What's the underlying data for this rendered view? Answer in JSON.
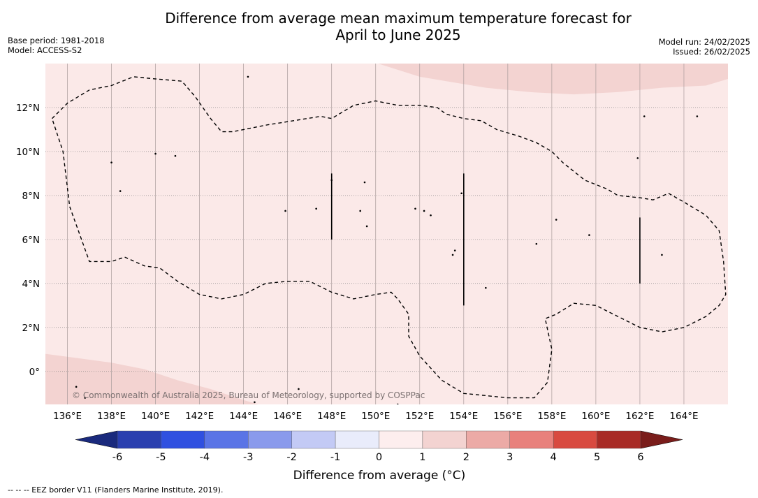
{
  "header": {
    "title_line1": "Difference from average mean maximum temperature forecast for",
    "title_line2": "April to June 2025",
    "base_period": "Base period: 1981-2018",
    "model": "Model: ACCESS-S2",
    "model_run": "Model run: 24/02/2025",
    "issued": "Issued: 26/02/2025"
  },
  "map": {
    "lon_range": [
      135,
      166
    ],
    "lat_range": [
      -1.5,
      14
    ],
    "lon_ticks": [
      "136°E",
      "138°E",
      "140°E",
      "142°E",
      "144°E",
      "146°E",
      "148°E",
      "150°E",
      "152°E",
      "154°E",
      "156°E",
      "158°E",
      "160°E",
      "162°E",
      "164°E"
    ],
    "lon_tick_values": [
      136,
      138,
      140,
      142,
      144,
      146,
      148,
      150,
      152,
      154,
      156,
      158,
      160,
      162,
      164
    ],
    "lat_ticks": [
      "0°",
      "2°N",
      "4°N",
      "6°N",
      "8°N",
      "10°N",
      "12°N"
    ],
    "lat_tick_values": [
      0,
      2,
      4,
      6,
      8,
      10,
      12
    ],
    "background_color": "#fbe9e8",
    "warm_band_color": "#f3d3d1",
    "copyright": "© Commonwealth of Australia 2025, Bureau of Meteorology, supported by COSPPac",
    "eez_outline": [
      [
        135.3,
        11.5
      ],
      [
        136,
        12.2
      ],
      [
        137,
        12.8
      ],
      [
        138,
        13.0
      ],
      [
        139,
        13.4
      ],
      [
        140,
        13.3
      ],
      [
        141.2,
        13.2
      ],
      [
        141.8,
        12.5
      ],
      [
        142.5,
        11.5
      ],
      [
        143,
        10.9
      ],
      [
        143.5,
        10.9
      ],
      [
        145,
        11.2
      ],
      [
        147.5,
        11.6
      ],
      [
        148,
        11.5
      ],
      [
        149,
        12.1
      ],
      [
        150,
        12.3
      ],
      [
        151,
        12.1
      ],
      [
        152,
        12.1
      ],
      [
        152.8,
        12.0
      ],
      [
        153.2,
        11.7
      ],
      [
        154,
        11.5
      ],
      [
        154.8,
        11.4
      ],
      [
        155.5,
        11.0
      ],
      [
        156.5,
        10.7
      ],
      [
        157.3,
        10.4
      ],
      [
        158,
        10.0
      ],
      [
        158.5,
        9.5
      ],
      [
        159.5,
        8.7
      ],
      [
        160.5,
        8.3
      ],
      [
        161,
        8.0
      ],
      [
        162,
        7.9
      ],
      [
        162.6,
        7.8
      ],
      [
        163.3,
        8.1
      ],
      [
        164,
        7.7
      ],
      [
        165,
        7.1
      ],
      [
        165.6,
        6.4
      ],
      [
        165.8,
        5.0
      ],
      [
        165.9,
        3.5
      ],
      [
        165.6,
        3.0
      ],
      [
        165,
        2.5
      ],
      [
        164,
        2.0
      ],
      [
        163,
        1.8
      ],
      [
        162,
        2.0
      ],
      [
        161,
        2.5
      ],
      [
        160,
        3.0
      ],
      [
        159,
        3.1
      ],
      [
        158.2,
        2.6
      ],
      [
        157.7,
        2.4
      ],
      [
        158,
        1.0
      ],
      [
        157.8,
        -0.5
      ],
      [
        157.2,
        -1.2
      ],
      [
        156,
        -1.2
      ],
      [
        155,
        -1.1
      ],
      [
        154,
        -1.0
      ],
      [
        153,
        -0.4
      ],
      [
        152,
        0.7
      ],
      [
        151.5,
        1.6
      ],
      [
        151.5,
        2.6
      ],
      [
        151,
        3.3
      ],
      [
        150.7,
        3.6
      ],
      [
        150,
        3.5
      ],
      [
        149,
        3.3
      ],
      [
        148,
        3.6
      ],
      [
        147,
        4.1
      ],
      [
        146,
        4.1
      ],
      [
        145,
        4.0
      ],
      [
        144,
        3.5
      ],
      [
        143,
        3.3
      ],
      [
        142,
        3.5
      ],
      [
        141,
        4.1
      ],
      [
        140.2,
        4.7
      ],
      [
        139.5,
        4.8
      ],
      [
        138.6,
        5.2
      ],
      [
        138,
        5.0
      ],
      [
        137,
        5.0
      ],
      [
        136.1,
        7.5
      ],
      [
        135.8,
        10.0
      ],
      [
        135.3,
        11.5
      ]
    ],
    "northeast_warm_band": [
      [
        149.8,
        14.1
      ],
      [
        152,
        13.4
      ],
      [
        155,
        12.9
      ],
      [
        157,
        12.7
      ],
      [
        159,
        12.6
      ],
      [
        161,
        12.7
      ],
      [
        163,
        12.9
      ],
      [
        165,
        13.0
      ],
      [
        166,
        13.3
      ],
      [
        166,
        14.1
      ]
    ],
    "southwest_warm_band": [
      [
        135,
        0.8
      ],
      [
        136.5,
        0.6
      ],
      [
        138,
        0.4
      ],
      [
        139.5,
        0.1
      ],
      [
        141,
        -0.4
      ],
      [
        142.5,
        -0.8
      ],
      [
        144,
        -1.3
      ],
      [
        145,
        -1.6
      ],
      [
        135,
        -1.6
      ]
    ],
    "boundary_lines": [
      [
        [
          148,
          9.0
        ],
        [
          148,
          6.0
        ]
      ],
      [
        [
          154,
          9.0
        ],
        [
          154,
          3.0
        ]
      ],
      [
        [
          162,
          7.0
        ],
        [
          162,
          4.0
        ]
      ]
    ],
    "islands": [
      [
        144.2,
        13.4
      ],
      [
        138.0,
        9.5
      ],
      [
        138.4,
        8.2
      ],
      [
        148.0,
        8.7
      ],
      [
        149.5,
        8.6
      ],
      [
        140.9,
        9.8
      ],
      [
        147.3,
        7.4
      ],
      [
        151.8,
        7.4
      ],
      [
        152.2,
        7.3
      ],
      [
        152.5,
        7.1
      ],
      [
        153.9,
        8.1
      ],
      [
        149.3,
        7.3
      ],
      [
        149.6,
        6.6
      ],
      [
        158.2,
        6.9
      ],
      [
        159.7,
        6.2
      ],
      [
        157.3,
        5.8
      ],
      [
        163.0,
        5.3
      ],
      [
        153.6,
        5.5
      ],
      [
        153.5,
        5.3
      ],
      [
        155.0,
        3.8
      ],
      [
        162.2,
        11.6
      ],
      [
        164.6,
        11.6
      ],
      [
        161.9,
        9.7
      ],
      [
        140.0,
        9.9
      ],
      [
        145.9,
        7.3
      ],
      [
        136.4,
        -0.7
      ],
      [
        136.8,
        -1.2
      ],
      [
        146.5,
        -0.8
      ],
      [
        144.5,
        -1.4
      ],
      [
        151.0,
        -1.5
      ]
    ]
  },
  "colorbar": {
    "title": "Difference from average (°C)",
    "labels": [
      "-6",
      "-5",
      "-4",
      "-3",
      "-2",
      "-1",
      "0",
      "1",
      "2",
      "3",
      "4",
      "5",
      "6"
    ],
    "colors": [
      "#2a3faf",
      "#3050e0",
      "#5a74e6",
      "#8a9aec",
      "#c3caf5",
      "#e9ecfb",
      "#fdeeee",
      "#f3d3d1",
      "#ecaaa6",
      "#e8817c",
      "#d84a40",
      "#a82b26"
    ],
    "low_extend_color": "#1a2a7d",
    "high_extend_color": "#7a1d1b"
  },
  "footer": {
    "eez_note": "--  --  -- EEZ border V11 (Flanders Marine Institute, 2019)."
  }
}
